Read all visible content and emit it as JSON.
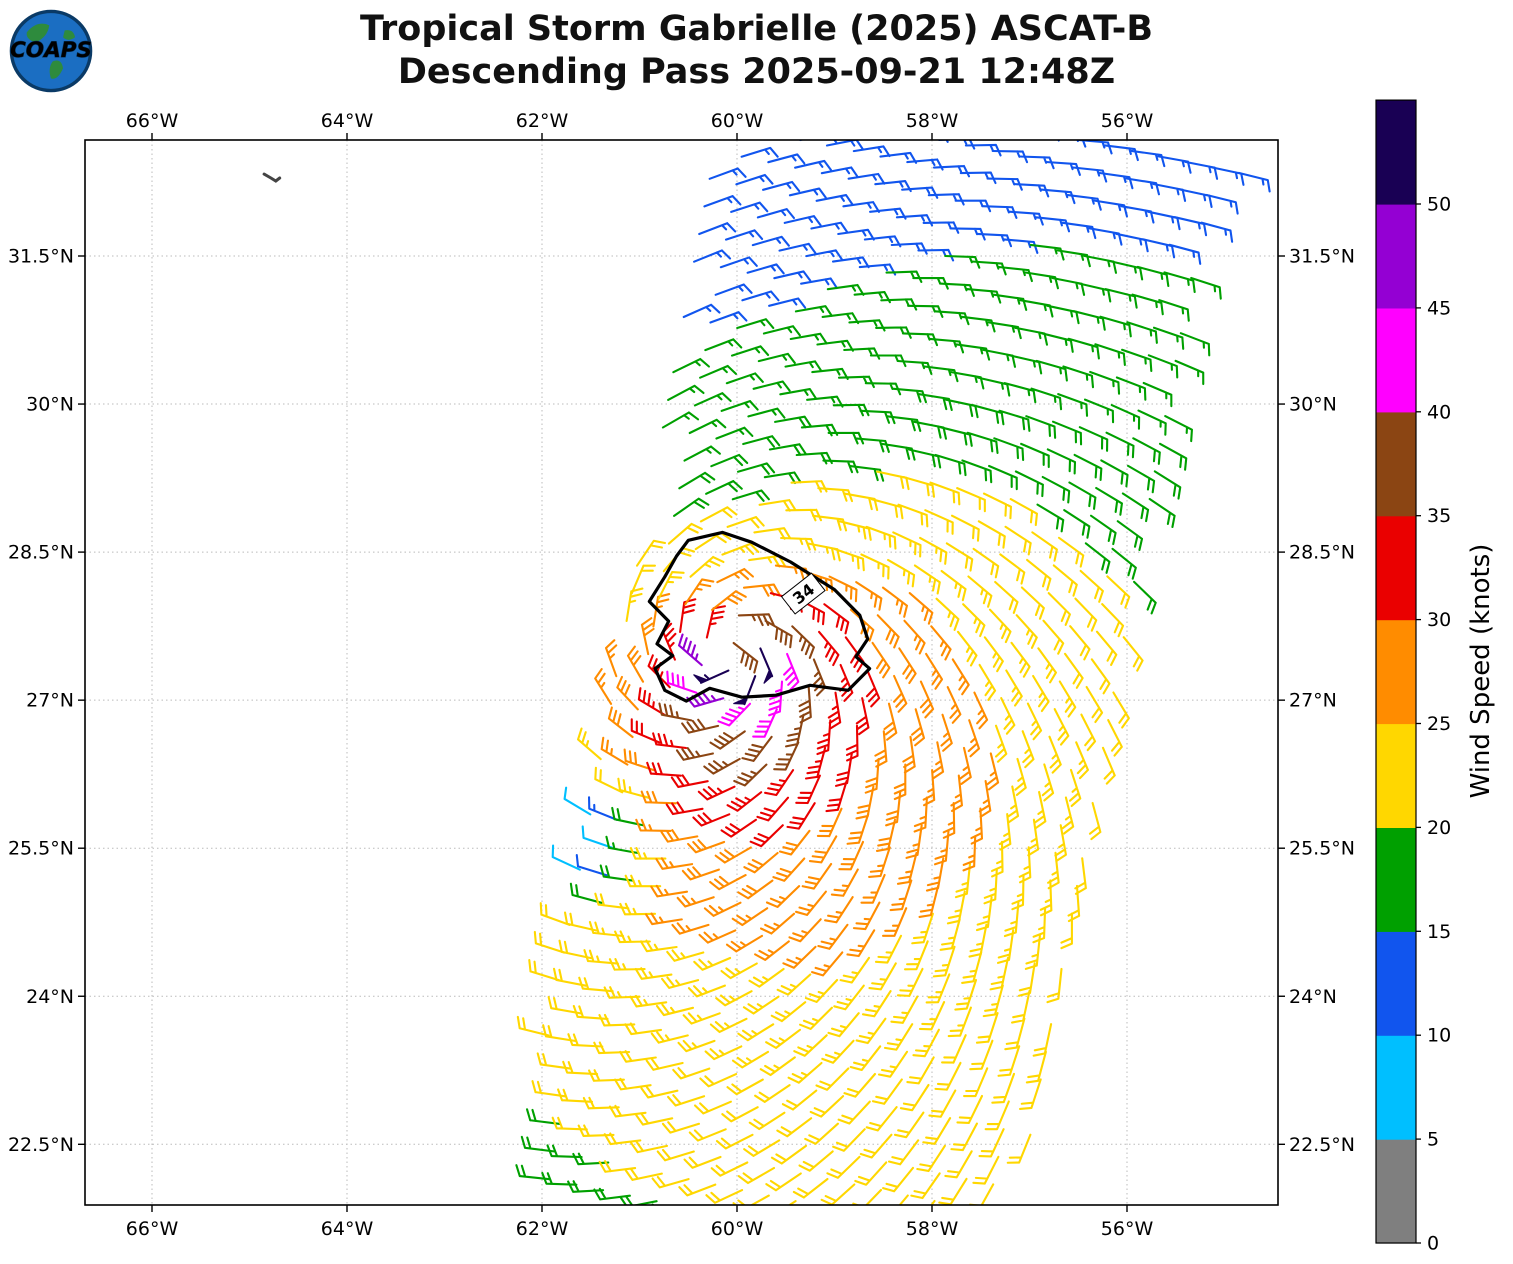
{
  "header": {
    "logo_text": "COAPS",
    "title_line1": "Tropical Storm Gabrielle (2025) ASCAT-B",
    "title_line2": "Descending Pass 2025-09-21 12:48Z"
  },
  "chart_data": {
    "type": "wind_barb_map",
    "title": "Tropical Storm Gabrielle (2025) ASCAT-B Descending Pass 2025-09-21 12:48Z",
    "storm_name": "Gabrielle",
    "satellite": "ASCAT-B",
    "pass_type": "Descending",
    "valid_time": "2025-09-21 12:48Z",
    "map_extent": {
      "lon_min": -66.69,
      "lon_max": -54.45,
      "lat_min": 21.89,
      "lat_max": 32.68
    },
    "grid": true,
    "x_axis": {
      "ticks": [
        {
          "value": -66,
          "label": "66°W"
        },
        {
          "value": -64,
          "label": "64°W"
        },
        {
          "value": -62,
          "label": "62°W"
        },
        {
          "value": -60,
          "label": "60°W"
        },
        {
          "value": -58,
          "label": "58°W"
        },
        {
          "value": -56,
          "label": "56°W"
        }
      ]
    },
    "y_axis": {
      "ticks": [
        {
          "value": 31.5,
          "label": "31.5°N"
        },
        {
          "value": 30,
          "label": "30°N"
        },
        {
          "value": 28.5,
          "label": "28.5°N"
        },
        {
          "value": 27,
          "label": "27°N"
        },
        {
          "value": 25.5,
          "label": "25.5°N"
        },
        {
          "value": 24,
          "label": "24°N"
        },
        {
          "value": 22.5,
          "label": "22.5°N"
        }
      ]
    },
    "colorbar": {
      "label": "Wind Speed (knots)",
      "bin_size_kt": 5,
      "tick_labels": [
        "0",
        "5",
        "10",
        "15",
        "20",
        "25",
        "30",
        "35",
        "40",
        "45",
        "50"
      ],
      "colors_low_to_high": [
        "#7f7f7f",
        "#00bfff",
        "#1155ee",
        "#00a000",
        "#ffd700",
        "#ff8c00",
        "#ea0000",
        "#8b4513",
        "#ff00ff",
        "#9400d3",
        "#190054"
      ]
    },
    "wind_barbs": {
      "units": "knots",
      "barb_increments": {
        "half": 5,
        "full": 10,
        "pennant": 50
      },
      "grid_spacing_deg": 0.28,
      "swath": {
        "axis_tilt_deg": 11.5,
        "lat_ref": 21.84,
        "center_lon_at_ref": -59.7,
        "center_dlon_dlat": 0.19,
        "half_width_at_ref": 2.44,
        "half_width_dlat": 0.0286
      },
      "field_model": {
        "storm_center": {
          "lat": 27.55,
          "lon": -60.1
        },
        "vmax_kt": 44,
        "rmax_deg": 0.33,
        "outer_decay_exp": 0.35,
        "asym_amp": 0.28,
        "asym_dir_deg_from_east_ccw": -60,
        "background_floor_kt": 11.5,
        "background_flow": {
          "from_deg": 75,
          "speed_kt": 7
        },
        "inflow_deg": 20,
        "calm_spot": {
          "lat": 25.55,
          "lon": -61.5,
          "amp_kt": -20,
          "sigma_deg": 0.4
        }
      }
    },
    "contour_34kt": {
      "label": "34",
      "label_lat": 28.08,
      "label_lon": -59.32,
      "label_rotation_deg": -38,
      "polygon_lat_lon": [
        [
          28.62,
          -60.5
        ],
        [
          28.7,
          -60.15
        ],
        [
          28.6,
          -59.85
        ],
        [
          28.4,
          -59.45
        ],
        [
          28.12,
          -59.0
        ],
        [
          27.86,
          -58.74
        ],
        [
          27.62,
          -58.66
        ],
        [
          27.44,
          -58.78
        ],
        [
          27.32,
          -58.64
        ],
        [
          27.1,
          -58.86
        ],
        [
          27.15,
          -59.25
        ],
        [
          27.05,
          -59.6
        ],
        [
          27.03,
          -59.95
        ],
        [
          27.12,
          -60.28
        ],
        [
          26.99,
          -60.52
        ],
        [
          27.1,
          -60.74
        ],
        [
          27.32,
          -60.84
        ],
        [
          27.45,
          -60.66
        ],
        [
          27.57,
          -60.82
        ],
        [
          27.8,
          -60.7
        ],
        [
          28.0,
          -60.9
        ],
        [
          28.25,
          -60.74
        ],
        [
          28.46,
          -60.62
        ]
      ]
    },
    "islands": {
      "bermuda_lat_lon": [
        [
          32.33,
          -64.85
        ],
        [
          32.29,
          -64.78
        ],
        [
          32.26,
          -64.73
        ],
        [
          32.29,
          -64.69
        ]
      ]
    }
  }
}
